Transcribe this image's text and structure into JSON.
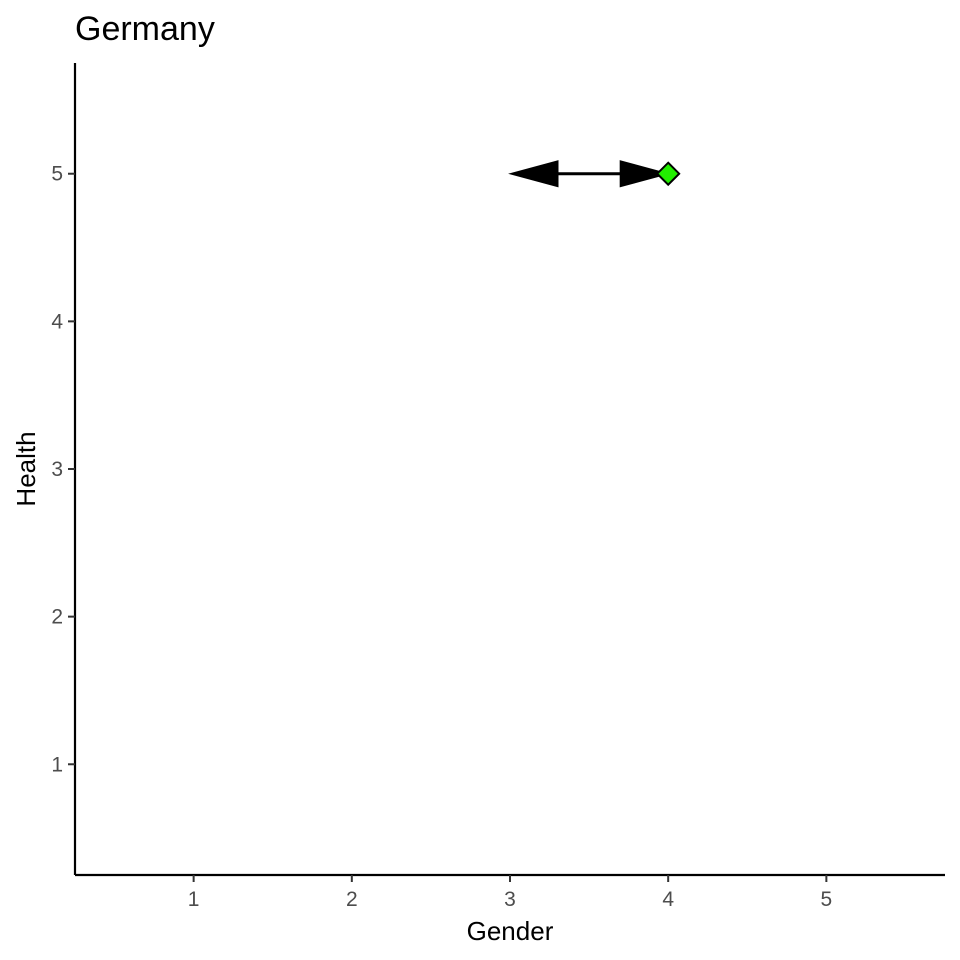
{
  "chart_data": {
    "type": "scatter",
    "title": "Germany",
    "xlabel": "Gender",
    "ylabel": "Health",
    "xlim": [
      0.25,
      5.75
    ],
    "ylim": [
      0.25,
      5.75
    ],
    "x_ticks": [
      1,
      2,
      3,
      4,
      5
    ],
    "y_ticks": [
      1,
      2,
      3,
      4,
      5
    ],
    "grid": false,
    "arrows": [
      {
        "x_start": 3.0,
        "y_start": 5.0,
        "x_end": 4.0,
        "y_end": 5.0,
        "heads": "both",
        "color": "#000000"
      }
    ],
    "points": [
      {
        "x": 4.0,
        "y": 5.0,
        "shape": "diamond",
        "fill": "#22ee00",
        "stroke": "#000000"
      }
    ]
  }
}
